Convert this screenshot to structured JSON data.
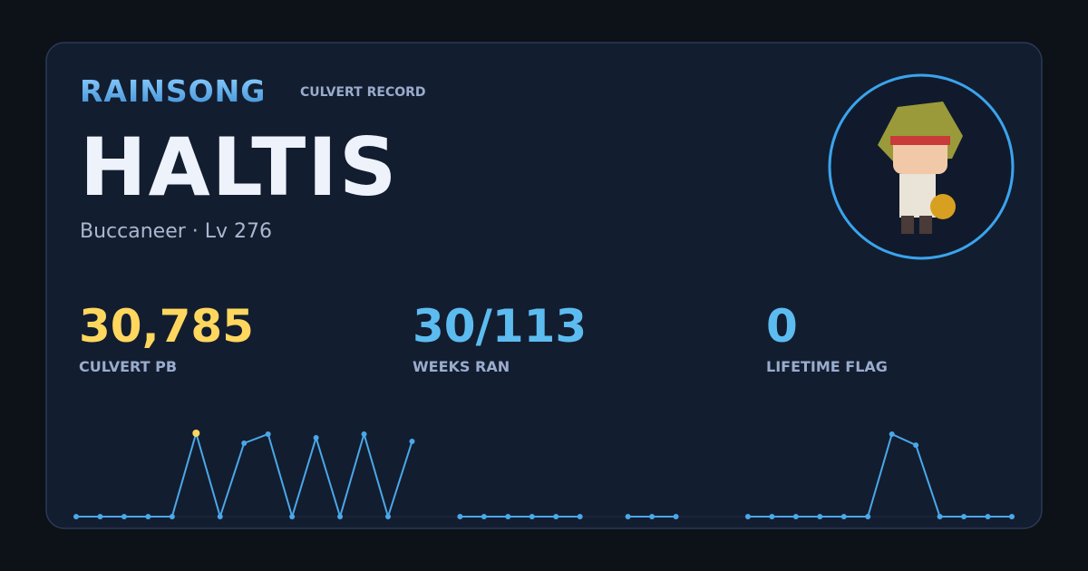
{
  "header": {
    "server": "RAINSONG",
    "subtitle": "CULVERT RECORD"
  },
  "player": {
    "name": "HALTIS",
    "class_level": "Buccaneer · Lv 276"
  },
  "stats": [
    {
      "value": "30,785",
      "label": "CULVERT PB",
      "color": "#ffd75e"
    },
    {
      "value": "30/113",
      "label": "WEEKS RAN",
      "color": "#5cbcf0"
    },
    {
      "value": "0",
      "label": "LIFETIME FLAG",
      "color": "#5cbcf0"
    }
  ],
  "chart_data": {
    "type": "line",
    "highlight_color": "#ffd75e",
    "series": [
      {
        "color": "#4aa8e8",
        "values": [
          0,
          0,
          0,
          0,
          0,
          30785,
          0,
          27100,
          30450,
          0,
          29100,
          0,
          30450,
          0,
          27770,
          null,
          0,
          0,
          0,
          0,
          0,
          0,
          null,
          0,
          0,
          0,
          null,
          null,
          0,
          0,
          0,
          0,
          0,
          0,
          30450,
          26400,
          0,
          0,
          0,
          0
        ]
      }
    ]
  }
}
